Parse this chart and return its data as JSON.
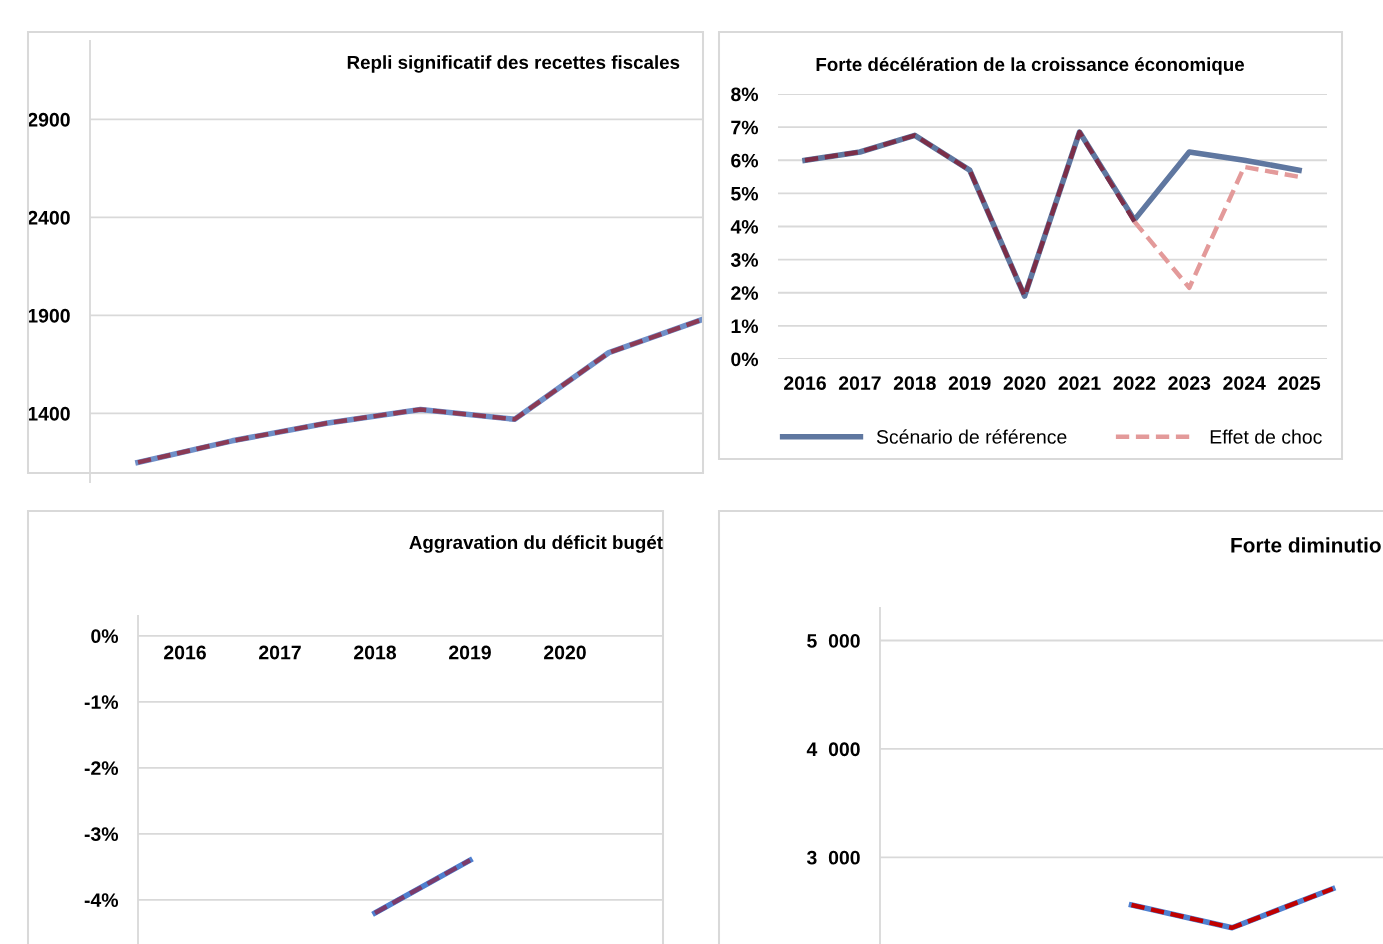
{
  "chart_data": [
    {
      "type": "line",
      "title": "Repli significatif des recettes fiscales",
      "categories": [
        null,
        null,
        null,
        null,
        null,
        null,
        null
      ],
      "series": [
        {
          "color": "#6f8fc8",
          "line_style": "solid",
          "values": [
            1150,
            1260,
            1350,
            1420,
            1370,
            1710,
            1880
          ]
        },
        {
          "color": "#8b3a55",
          "line_style": "dashed",
          "values": [
            1150,
            1260,
            1350,
            1420,
            1370,
            1710,
            1880
          ]
        }
      ],
      "ylim": [
        1050,
        3300
      ],
      "yticks": [
        1400,
        1900,
        2400,
        2900
      ],
      "grid": "y",
      "tick_labels": "y"
    },
    {
      "type": "line",
      "title": "Forte décélération de la croissance économique",
      "categories": [
        "2016",
        "2017",
        "2018",
        "2019",
        "2020",
        "2021",
        "2022",
        "2023",
        "2024",
        "2025"
      ],
      "series": [
        {
          "name": "Scénario de référence",
          "color": "#5f77a0",
          "line_style": "solid",
          "values": [
            6.0,
            6.25,
            6.75,
            5.7,
            1.9,
            6.85,
            4.2,
            6.25,
            6.0,
            5.7
          ]
        },
        {
          "name": "Effet de choc",
          "color": "#e39a9a",
          "line_style": "dashed",
          "values": [
            null,
            null,
            null,
            null,
            null,
            null,
            4.15,
            2.15,
            5.8,
            5.5
          ]
        },
        {
          "color": "#7b2e48",
          "line_style": "dashed",
          "values": [
            6.0,
            6.25,
            6.75,
            5.7,
            1.9,
            6.85,
            4.15,
            null,
            null,
            null
          ]
        }
      ],
      "ylim": [
        0,
        8
      ],
      "yticks": [
        {
          "value": 0,
          "label": "0%"
        },
        {
          "value": 1,
          "label": "1%"
        },
        {
          "value": 2,
          "label": "2%"
        },
        {
          "value": 3,
          "label": "3%"
        },
        {
          "value": 4,
          "label": "4%"
        },
        {
          "value": 5,
          "label": "5%"
        },
        {
          "value": 6,
          "label": "6%"
        },
        {
          "value": 7,
          "label": "7%"
        },
        {
          "value": 8,
          "label": "8%"
        }
      ],
      "grid": "y",
      "legend": "bottom"
    },
    {
      "type": "line",
      "title": "Aggravation du déficit bugét",
      "categories": [
        "2016",
        "2017",
        "2018",
        "2019",
        "2020"
      ],
      "series": [
        {
          "color": "#4f7fcf",
          "line_style": "solid",
          "values": [
            null,
            null,
            -4.2,
            -3.4,
            null
          ]
        },
        {
          "color": "#7b3a6a",
          "line_style": "dashed",
          "values": [
            null,
            null,
            -4.2,
            -3.4,
            null
          ]
        }
      ],
      "ylim": [
        -4.67,
        0.3
      ],
      "yticks": [
        {
          "value": 0,
          "label": "0%"
        },
        {
          "value": -1,
          "label": "-1%"
        },
        {
          "value": -2,
          "label": "-2%"
        },
        {
          "value": -3,
          "label": "-3%"
        },
        {
          "value": -4,
          "label": "-4%"
        }
      ],
      "grid": "y"
    },
    {
      "type": "line",
      "title": "Forte diminutio",
      "categories": [
        null,
        null,
        null,
        null,
        null
      ],
      "series": [
        {
          "color": "#4f7fcf",
          "line_style": "solid",
          "values": [
            null,
            null,
            2560,
            2350,
            2710
          ]
        },
        {
          "color": "#c00000",
          "line_style": "dashed",
          "values": [
            null,
            null,
            2560,
            2350,
            2710
          ]
        }
      ],
      "ylim": [
        2200,
        5300
      ],
      "yticks": [
        {
          "value": 3000,
          "label": "3  000"
        },
        {
          "value": 4000,
          "label": "4  000"
        },
        {
          "value": 5000,
          "label": "5  000"
        }
      ],
      "grid": "y",
      "tick_labels": "y"
    }
  ]
}
